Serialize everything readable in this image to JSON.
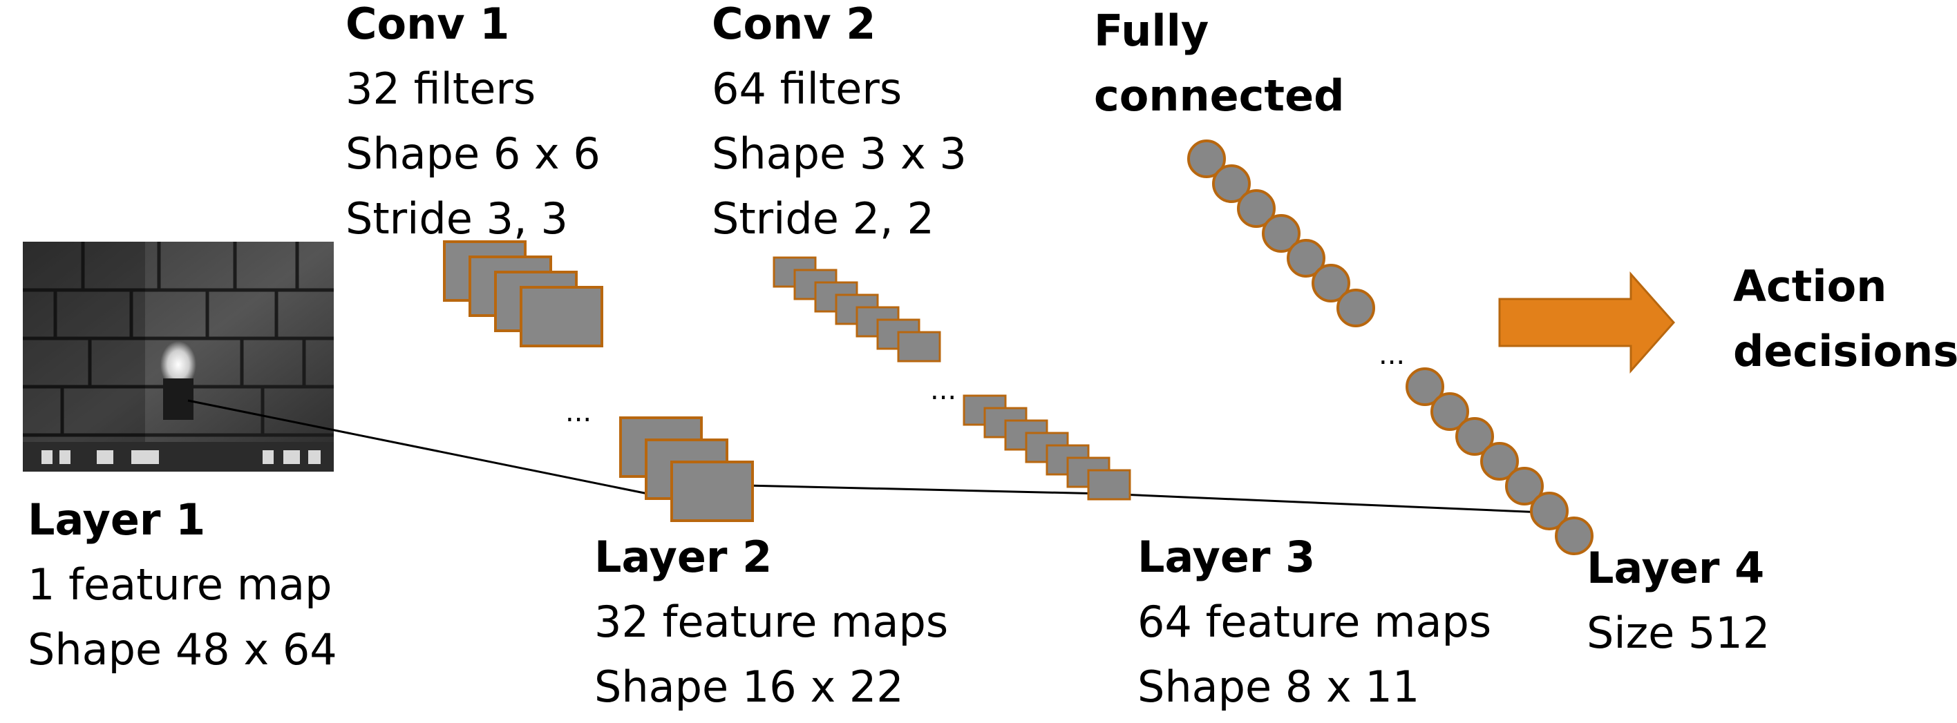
{
  "colors": {
    "map_fill": "#878787",
    "map_stroke": "#b8670f",
    "arrow": "#e2801a",
    "line": "#000000"
  },
  "conv1": {
    "title": "Conv 1",
    "filters": "32 filters",
    "shape": "Shape 6 x 6",
    "stride": "Stride 3, 3"
  },
  "conv2": {
    "title": "Conv 2",
    "filters": "64 filters",
    "shape": "Shape 3 x 3",
    "stride": "Stride 2, 2"
  },
  "fc": {
    "line1": "Fully",
    "line2": "connected"
  },
  "action": {
    "line1": "Action",
    "line2": "decisions"
  },
  "layer1": {
    "title": "Layer 1",
    "maps": "1 feature map",
    "shape": "Shape 48 x 64"
  },
  "layer2": {
    "title": "Layer 2",
    "maps": "32 feature maps",
    "shape": "Shape 16 x 22"
  },
  "layer3": {
    "title": "Layer 3",
    "maps": "64 feature maps",
    "shape": "Shape 8 x 11"
  },
  "layer4": {
    "title": "Layer 4",
    "size": "Size 512"
  },
  "ellipsis": "..."
}
